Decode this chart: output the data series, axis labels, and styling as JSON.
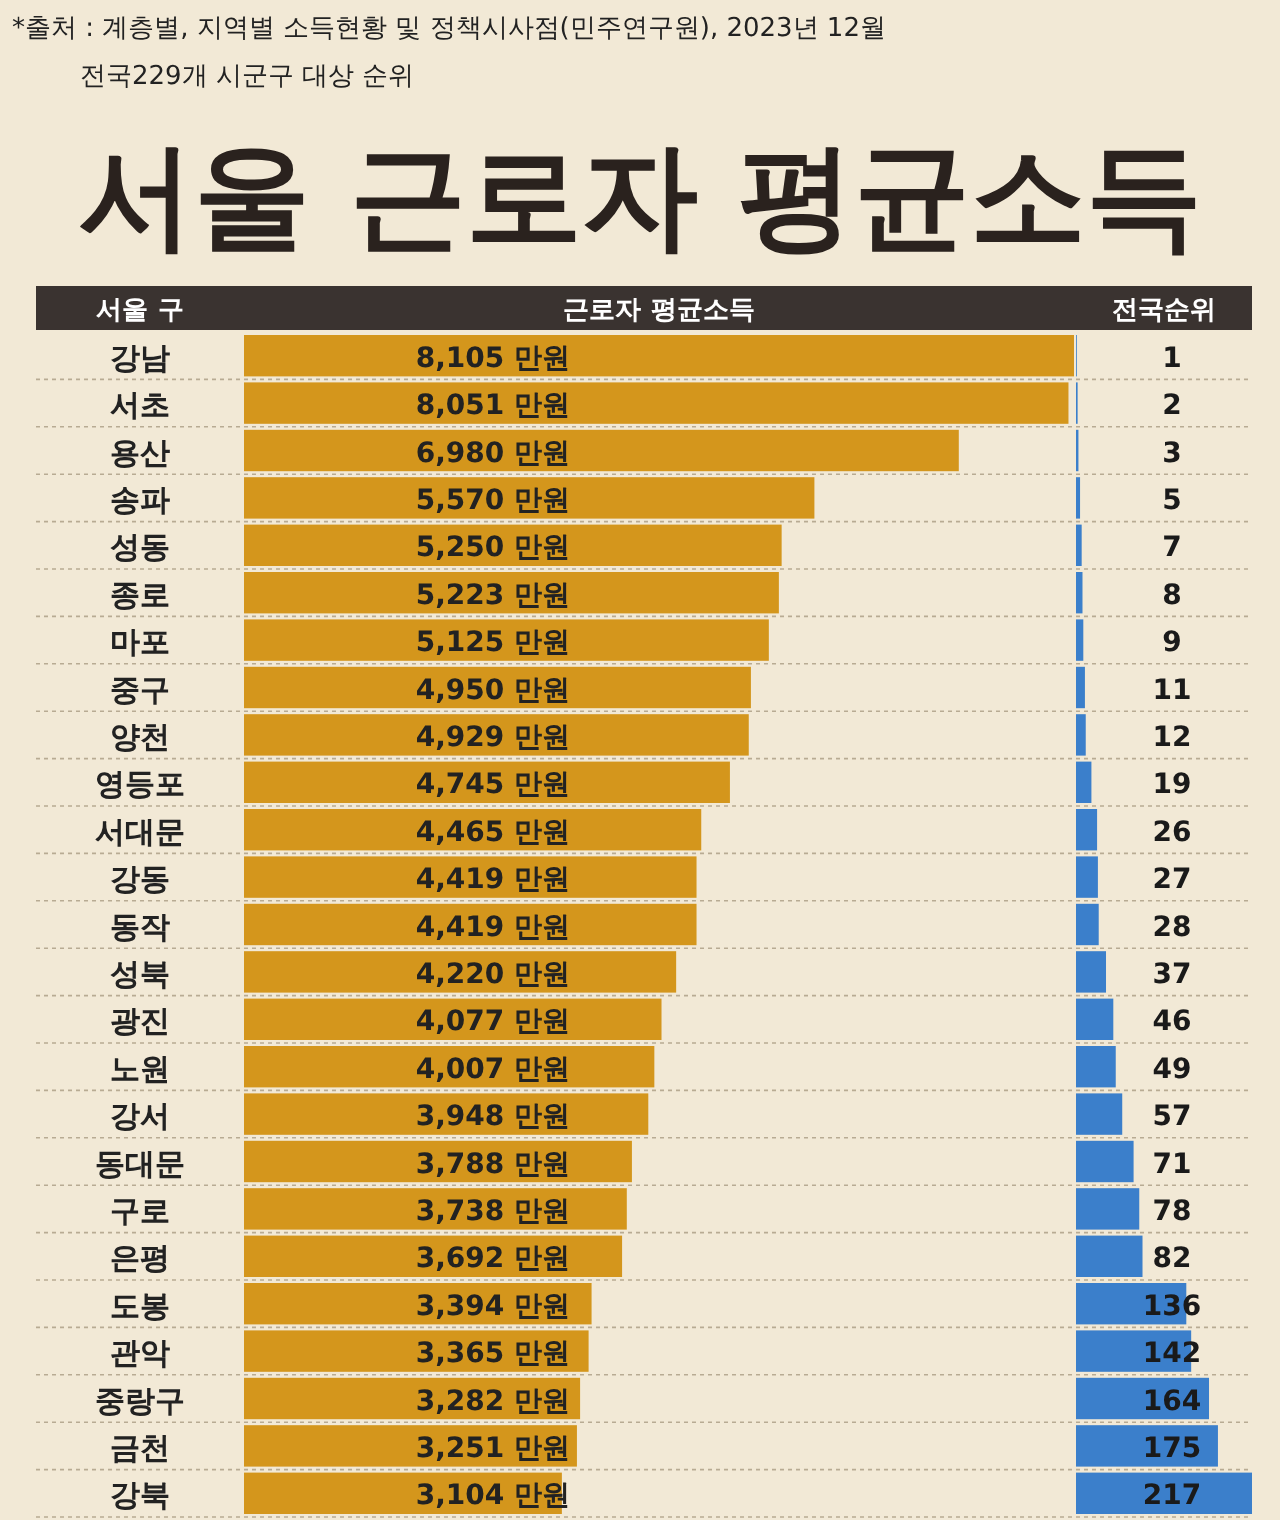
{
  "chart_data": [
    {
      "type": "bar",
      "orientation": "horizontal",
      "title": "서울 근로자 평균소득",
      "annotations": [
        "*출처 : 계층별, 지역별 소득현황 및 정책시사점(민주연구원), 2023년 12월",
        "전국229개 시군구 대상 순위"
      ],
      "ylabel": "서울 구",
      "xlabel": "근로자 평균소득",
      "color": "#d4961c",
      "categories": [
        "강남",
        "서초",
        "용산",
        "송파",
        "성동",
        "종로",
        "마포",
        "중구",
        "양천",
        "영등포",
        "서대문",
        "강동",
        "동작",
        "성북",
        "광진",
        "노원",
        "강서",
        "동대문",
        "구로",
        "은평",
        "도봉",
        "관악",
        "중랑구",
        "금천",
        "강북"
      ],
      "values": [
        8105,
        8051,
        6980,
        5570,
        5250,
        5223,
        5125,
        4950,
        4929,
        4745,
        4465,
        4419,
        4419,
        4220,
        4077,
        4007,
        3948,
        3788,
        3738,
        3692,
        3394,
        3365,
        3282,
        3251,
        3104
      ],
      "value_labels": [
        "8,105 만원",
        "8,051 만원",
        "6,980 만원",
        "5,570 만원",
        "5,250 만원",
        "5,223 만원",
        "5,125 만원",
        "4,950 만원",
        "4,929 만원",
        "4,745 만원",
        "4,465 만원",
        "4,419 만원",
        "4,419 만원",
        "4,220 만원",
        "4,077 만원",
        "4,007 만원",
        "3,948 만원",
        "3,788 만원",
        "3,738 만원",
        "3,692 만원",
        "3,394 만원",
        "3,365 만원",
        "3,282 만원",
        "3,251 만원",
        "3,104 만원"
      ]
    },
    {
      "type": "bar",
      "orientation": "horizontal",
      "xlabel": "전국순위",
      "color": "#3b7fcb",
      "data_labels": true,
      "categories": [
        null,
        null,
        null,
        null,
        null,
        null,
        null,
        null,
        null,
        null,
        null,
        null,
        null,
        null,
        null,
        null,
        null,
        null,
        null,
        null,
        null,
        null,
        null,
        null,
        null
      ],
      "values": [
        1,
        2,
        3,
        5,
        7,
        8,
        9,
        11,
        12,
        19,
        26,
        27,
        28,
        37,
        46,
        49,
        57,
        71,
        78,
        82,
        136,
        142,
        164,
        175,
        217
      ]
    }
  ]
}
